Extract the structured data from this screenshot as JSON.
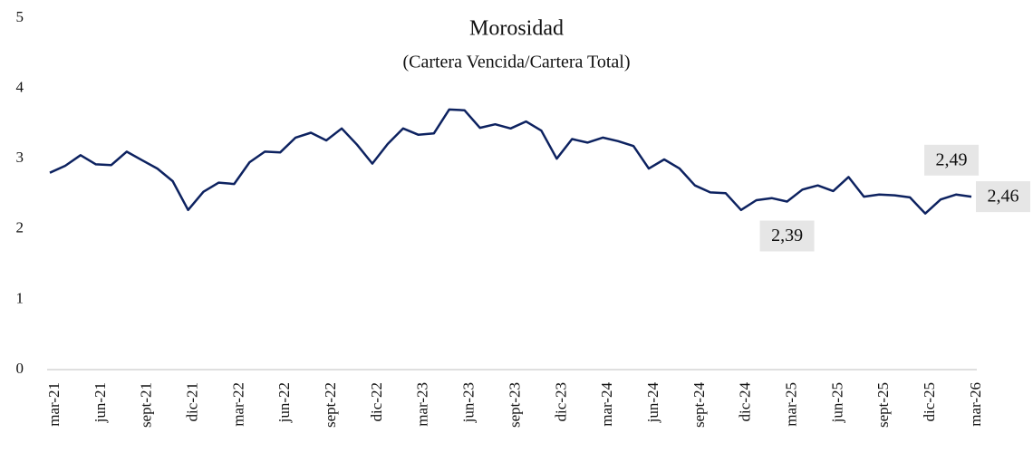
{
  "chart_data": {
    "type": "line",
    "title": "Morosidad",
    "subtitle": "(Cartera Vencida/Cartera Total)",
    "categories": [
      "mar-21",
      null,
      null,
      "jun-21",
      null,
      null,
      "sept-21",
      null,
      null,
      "dic-21",
      null,
      null,
      "mar-22",
      null,
      null,
      "jun-22",
      null,
      null,
      "sept-22",
      null,
      null,
      "dic-22",
      null,
      null,
      "mar-23",
      null,
      null,
      "jun-23",
      null,
      null,
      "sept-23",
      null,
      null,
      "dic-23",
      null,
      null,
      "mar-24",
      null,
      null,
      "jun-24",
      null,
      null,
      "sept-24",
      null,
      null,
      "dic-24",
      null,
      null,
      "mar-25",
      null,
      null,
      "jun-25",
      null,
      null,
      "sept-25",
      null,
      null,
      "dic-25",
      null,
      null,
      "mar-26"
    ],
    "series": [
      {
        "name": "Morosidad",
        "color": "#0d2260",
        "values": [
          2.8,
          2.9,
          3.05,
          2.92,
          2.91,
          3.1,
          2.98,
          2.86,
          2.68,
          2.27,
          2.53,
          2.66,
          2.64,
          2.95,
          3.1,
          3.09,
          3.3,
          3.37,
          3.26,
          3.43,
          3.2,
          2.93,
          3.21,
          3.43,
          3.34,
          3.36,
          3.7,
          3.69,
          3.44,
          3.49,
          3.43,
          3.53,
          3.4,
          3.0,
          3.28,
          3.23,
          3.3,
          3.25,
          3.18,
          2.86,
          2.99,
          2.86,
          2.62,
          2.52,
          2.51,
          2.27,
          2.41,
          2.44,
          2.39,
          2.56,
          2.62,
          2.54,
          2.74,
          2.46,
          2.49,
          2.48,
          2.45,
          2.22,
          2.42,
          2.49,
          2.46
        ],
        "value_labels": [
          null,
          null,
          null,
          null,
          null,
          null,
          null,
          null,
          null,
          null,
          null,
          null,
          null,
          null,
          null,
          null,
          null,
          null,
          null,
          null,
          null,
          null,
          null,
          null,
          null,
          null,
          null,
          null,
          null,
          null,
          null,
          null,
          null,
          null,
          null,
          null,
          null,
          null,
          null,
          null,
          null,
          null,
          null,
          null,
          null,
          null,
          null,
          null,
          "2,39",
          null,
          null,
          null,
          null,
          null,
          null,
          null,
          null,
          null,
          null,
          "2,49",
          "2,46"
        ]
      }
    ],
    "ylim": [
      0,
      5
    ],
    "yticks": [
      0,
      1,
      2,
      3,
      4,
      5
    ],
    "grid": false
  }
}
